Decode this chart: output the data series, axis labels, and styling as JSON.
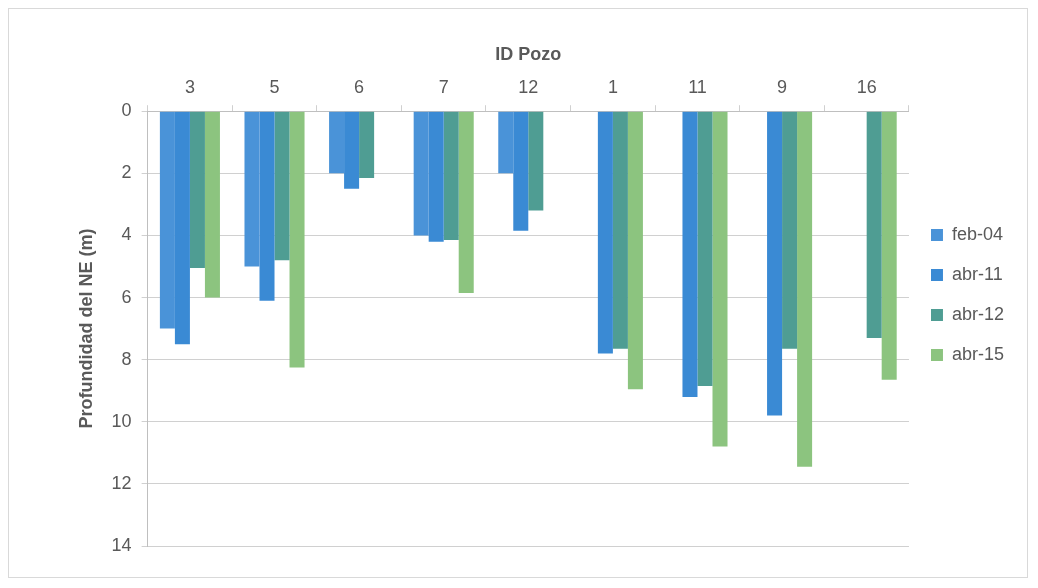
{
  "chart_data": {
    "type": "bar",
    "xlabel": "ID Pozo",
    "ylabel": "Profundidad del NE (m)",
    "categories": [
      "3",
      "5",
      "6",
      "7",
      "12",
      "1",
      "11",
      "9",
      "16"
    ],
    "series": [
      {
        "name": "feb-04",
        "color": "#4a93d8",
        "values": [
          7.0,
          5.0,
          2.0,
          4.0,
          2.0,
          null,
          null,
          null,
          null
        ]
      },
      {
        "name": "abr-11",
        "color": "#3a8ad4",
        "values": [
          7.5,
          6.1,
          2.5,
          4.2,
          3.85,
          7.8,
          9.2,
          9.8,
          null
        ]
      },
      {
        "name": "abr-12",
        "color": "#4f9d93",
        "values": [
          5.05,
          4.8,
          2.15,
          4.15,
          3.2,
          7.65,
          8.85,
          7.65,
          7.3
        ]
      },
      {
        "name": "abr-15",
        "color": "#8cc47f",
        "values": [
          6.0,
          8.25,
          null,
          5.85,
          null,
          8.95,
          10.8,
          11.45,
          8.65
        ]
      }
    ],
    "ylim": [
      14,
      0
    ],
    "yticks": [
      0,
      2,
      4,
      6,
      8,
      10,
      12,
      14
    ],
    "grid": "y",
    "legend": "right"
  }
}
